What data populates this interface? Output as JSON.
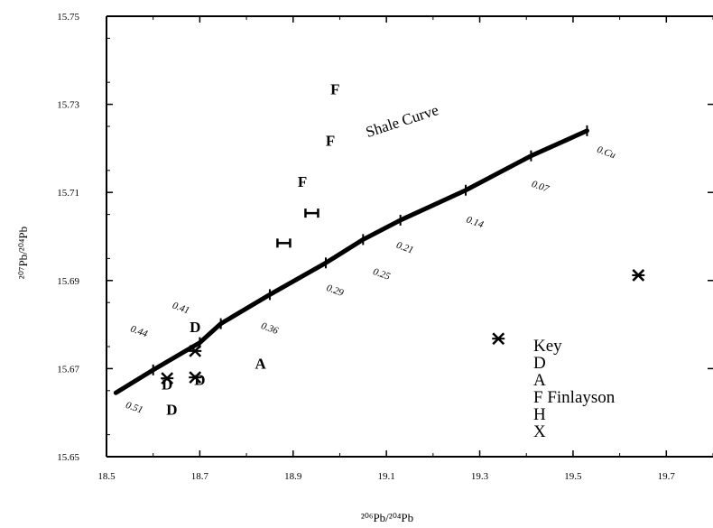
{
  "chart_data": {
    "type": "scatter",
    "title": "",
    "xlabel": "²⁰⁶Pb/²⁰⁴Pb",
    "ylabel": "²⁰⁷Pb/²⁰⁴Pb",
    "xlim": [
      18.5,
      19.8
    ],
    "ylim": [
      15.65,
      15.75
    ],
    "x_ticks": [
      "18.5",
      "18.7",
      "18.9",
      "19.1",
      "19.3",
      "19.5",
      "19.7"
    ],
    "y_ticks": [
      "15.65",
      "15.67",
      "15.69",
      "15.71",
      "15.73",
      "15.75"
    ],
    "grid": false,
    "curve": {
      "name": "Shale Curve",
      "points": [
        [
          18.52,
          15.6645
        ],
        [
          18.6,
          15.6697
        ],
        [
          18.7,
          15.6759
        ],
        [
          18.745,
          15.6802
        ],
        [
          18.85,
          15.6868
        ],
        [
          18.97,
          15.694
        ],
        [
          19.05,
          15.6993
        ],
        [
          19.13,
          15.7037
        ],
        [
          19.27,
          15.7105
        ],
        [
          19.41,
          15.7183
        ],
        [
          19.53,
          15.724
        ]
      ],
      "label_x": 19.06,
      "label_y": 15.7225
    },
    "annotations": [
      {
        "text": "0.51",
        "x": 18.54,
        "y": 15.6612
      },
      {
        "text": "0.44",
        "x": 18.55,
        "y": 15.6785
      },
      {
        "text": "0.41",
        "x": 18.64,
        "y": 15.6838
      },
      {
        "text": "0.36",
        "x": 18.83,
        "y": 15.6792
      },
      {
        "text": "0.29",
        "x": 18.97,
        "y": 15.6878
      },
      {
        "text": "0.25",
        "x": 19.07,
        "y": 15.6915
      },
      {
        "text": "0.21",
        "x": 19.12,
        "y": 15.6975
      },
      {
        "text": "0.14",
        "x": 19.27,
        "y": 15.7033
      },
      {
        "text": "0.07",
        "x": 19.41,
        "y": 15.7114
      },
      {
        "text": "0.Cu",
        "x": 19.55,
        "y": 15.7192
      }
    ],
    "series": [
      {
        "name": "D",
        "marker": "D",
        "points": [
          [
            18.63,
            15.6665
          ],
          [
            18.64,
            15.6608
          ],
          [
            18.7,
            15.6675
          ],
          [
            18.69,
            15.6795
          ]
        ]
      },
      {
        "name": "A",
        "marker": "A",
        "points": [
          [
            18.83,
            15.6712
          ]
        ]
      },
      {
        "name": "F Finlayson",
        "marker": "F",
        "points": [
          [
            18.92,
            15.7125
          ],
          [
            18.98,
            15.7218
          ],
          [
            18.99,
            15.7335
          ]
        ]
      },
      {
        "name": "H",
        "marker": "H",
        "points": [
          [
            18.88,
            15.6985
          ],
          [
            18.94,
            15.7053
          ]
        ]
      },
      {
        "name": "X",
        "marker": "X",
        "points": [
          [
            18.63,
            15.6678
          ],
          [
            18.69,
            15.674
          ],
          [
            18.69,
            15.668
          ],
          [
            19.34,
            15.6768
          ],
          [
            19.64,
            15.6912
          ]
        ]
      }
    ],
    "legend": {
      "title": "Key",
      "placement": "bottom-right",
      "entries": [
        "D",
        "A",
        "F Finlayson",
        "H",
        "X"
      ]
    }
  }
}
